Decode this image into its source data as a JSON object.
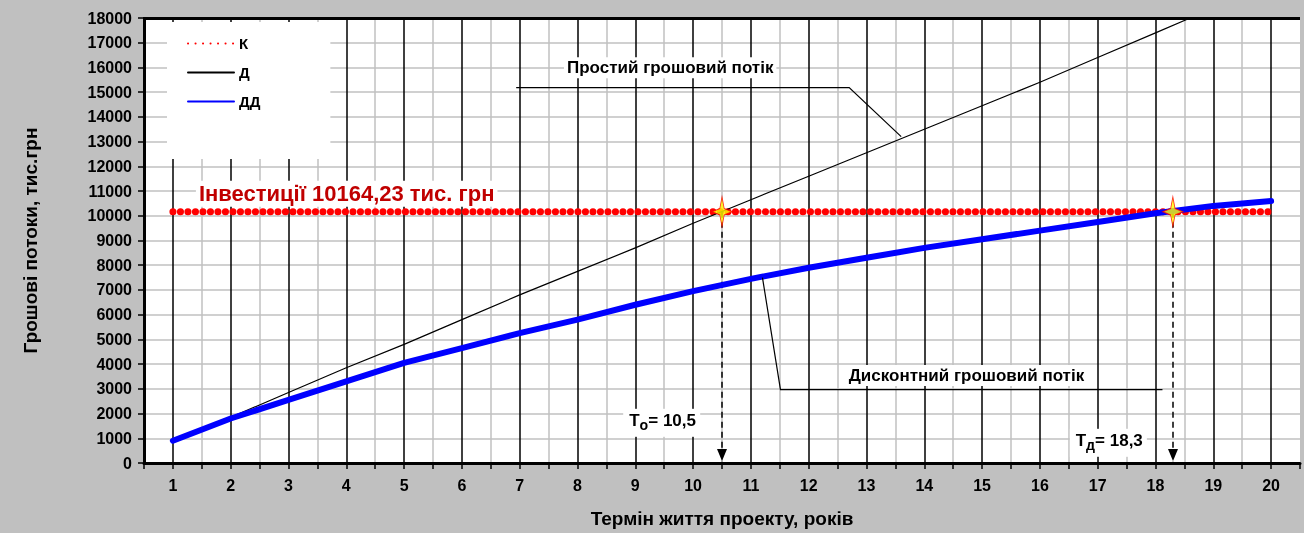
{
  "chart_data": {
    "type": "line",
    "xlabel": "Термін життя проекту, років",
    "ylabel": "Грошові потоки, тис.грн",
    "x": [
      1,
      2,
      3,
      4,
      5,
      6,
      7,
      8,
      9,
      10,
      11,
      12,
      13,
      14,
      15,
      16,
      17,
      18,
      19,
      20
    ],
    "xlim": [
      0.5,
      20.5
    ],
    "xticks": [
      {
        "value": 0.5,
        "label": null
      },
      1,
      {
        "value": 1.5,
        "label": null
      },
      2,
      {
        "value": 2.5,
        "label": null
      },
      3,
      {
        "value": 3.5,
        "label": null
      },
      4,
      {
        "value": 4.5,
        "label": null
      },
      5,
      {
        "value": 5.5,
        "label": null
      },
      6,
      {
        "value": 6.5,
        "label": null
      },
      7,
      {
        "value": 7.5,
        "label": null
      },
      8,
      {
        "value": 8.5,
        "label": null
      },
      9,
      {
        "value": 9.5,
        "label": null
      },
      10,
      {
        "value": 10.5,
        "label": null
      },
      11,
      {
        "value": 11.5,
        "label": null
      },
      12,
      {
        "value": 12.5,
        "label": null
      },
      13,
      {
        "value": 13.5,
        "label": null
      },
      14,
      {
        "value": 14.5,
        "label": null
      },
      15,
      {
        "value": 15.5,
        "label": null
      },
      16,
      {
        "value": 16.5,
        "label": null
      },
      17,
      {
        "value": 17.5,
        "label": null
      },
      18,
      {
        "value": 18.5,
        "label": null
      },
      19,
      {
        "value": 19.5,
        "label": null
      },
      20,
      {
        "value": 20.5,
        "label": null
      }
    ],
    "ylim": [
      0,
      18000
    ],
    "yticks": [
      0,
      1000,
      2000,
      3000,
      4000,
      5000,
      6000,
      7000,
      8000,
      9000,
      10000,
      11000,
      12000,
      13000,
      14000,
      15000,
      16000,
      17000,
      18000
    ],
    "grid": true,
    "legend": "top left",
    "marker": "none",
    "series": [
      {
        "name": "К",
        "color": "#ff0000",
        "line_style": "dotted",
        "values": [
          10164.23,
          10164.23,
          10164.23,
          10164.23,
          10164.23,
          10164.23,
          10164.23,
          10164.23,
          10164.23,
          10164.23,
          10164.23,
          10164.23,
          10164.23,
          10164.23,
          10164.23,
          10164.23,
          10164.23,
          10164.23,
          10164.23,
          10164.23
        ]
      },
      {
        "name": "Д",
        "color": "#000000",
        "x": [
          1,
          2,
          3,
          4,
          5,
          6,
          7,
          8,
          9,
          10,
          11,
          12,
          13,
          14,
          15,
          16,
          17,
          18,
          18.6
        ],
        "values": [
          900,
          1850,
          2850,
          3850,
          4800,
          5800,
          6800,
          7750,
          8700,
          9700,
          10650,
          11600,
          12550,
          13500,
          14450,
          15400,
          16400,
          17400,
          18000
        ]
      },
      {
        "name": "ДД",
        "color": "#0000ff",
        "values": [
          900,
          1800,
          2550,
          3300,
          4050,
          4650,
          5250,
          5800,
          6400,
          6950,
          7450,
          7900,
          8300,
          8700,
          9050,
          9400,
          9750,
          10100,
          10400,
          10600
        ]
      },
      {
        "type": "scatter",
        "color": "#ffff00",
        "marker": "star",
        "x": [
          10.5,
          18.3
        ],
        "values": [
          10164.23,
          10164.23
        ]
      }
    ],
    "ref_lines": [
      {
        "axis": "x",
        "value": 10.5,
        "label": "Т$_{о}$= 10,5",
        "line_style": "dashed",
        "color": "#000000"
      },
      {
        "axis": "x",
        "value": 18.3,
        "label": "Т$_{д}$= 18,3",
        "line_style": "dashed",
        "color": "#000000"
      }
    ],
    "annotations": [
      {
        "text": "Інвестиції 10164,23 тис. грн",
        "x": 1,
        "y": 10164.23
      },
      {
        "text": "Простий грошовий потік",
        "x": 13.6,
        "y": 13200
      },
      {
        "text": "Дисконтний грошовий потік",
        "x": 11.2,
        "y": 7500
      }
    ]
  }
}
